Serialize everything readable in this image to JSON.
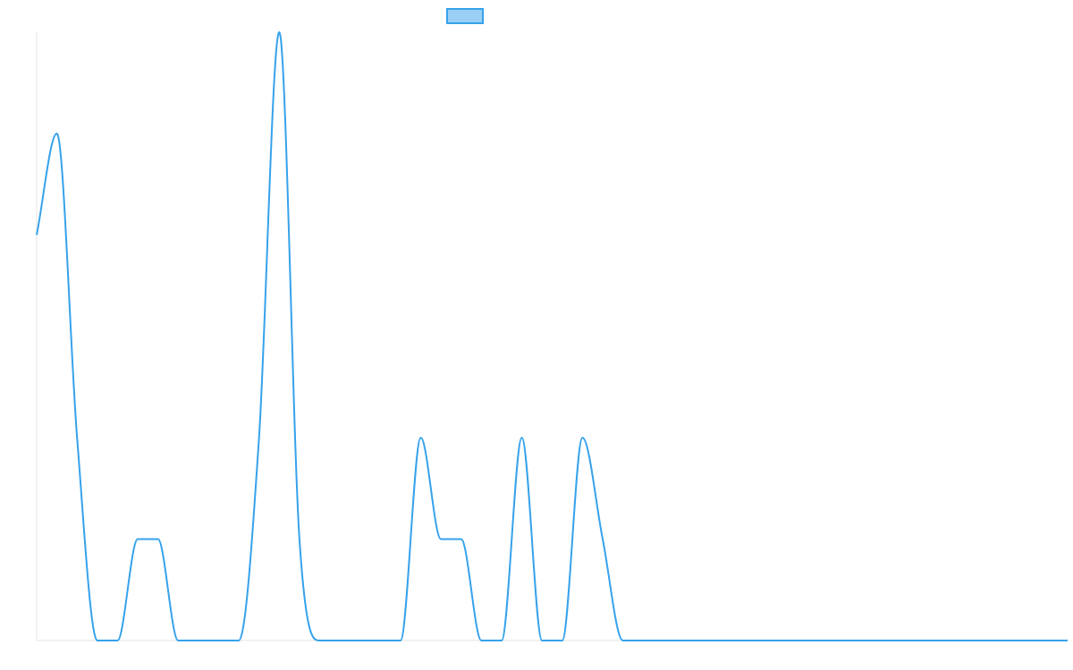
{
  "chart_data": {
    "type": "line",
    "title": "",
    "xlabel": "",
    "ylabel": "",
    "legend": {
      "position": "top-center",
      "entries": [
        {
          "label": "",
          "color": "#36a2eb",
          "fill": "#9ad0f5"
        }
      ]
    },
    "grid": false,
    "xlim": [
      0,
      51
    ],
    "ylim": [
      0,
      6
    ],
    "series": [
      {
        "name": "",
        "color": "#36a2eb",
        "x": [
          0,
          1,
          2,
          3,
          4,
          5,
          6,
          7,
          8,
          9,
          10,
          11,
          12,
          13,
          14,
          15,
          16,
          17,
          18,
          19,
          20,
          21,
          22,
          23,
          24,
          25,
          26,
          27,
          28,
          29,
          30,
          31,
          32,
          33,
          34,
          35,
          36,
          37,
          38,
          39,
          40,
          41,
          42,
          43,
          44,
          45,
          46,
          47,
          48,
          49,
          50,
          51
        ],
        "values": [
          4,
          5,
          2,
          0,
          0,
          1,
          1,
          0,
          0,
          0,
          0,
          2,
          6,
          1,
          0,
          0,
          0,
          0,
          0,
          2,
          1,
          1,
          0,
          0,
          2,
          0,
          0,
          2,
          1,
          0,
          0,
          0,
          0,
          0,
          0,
          0,
          0,
          0,
          0,
          0,
          0,
          0,
          0,
          0,
          0,
          0,
          0,
          0,
          0,
          0,
          0,
          0
        ]
      }
    ]
  }
}
